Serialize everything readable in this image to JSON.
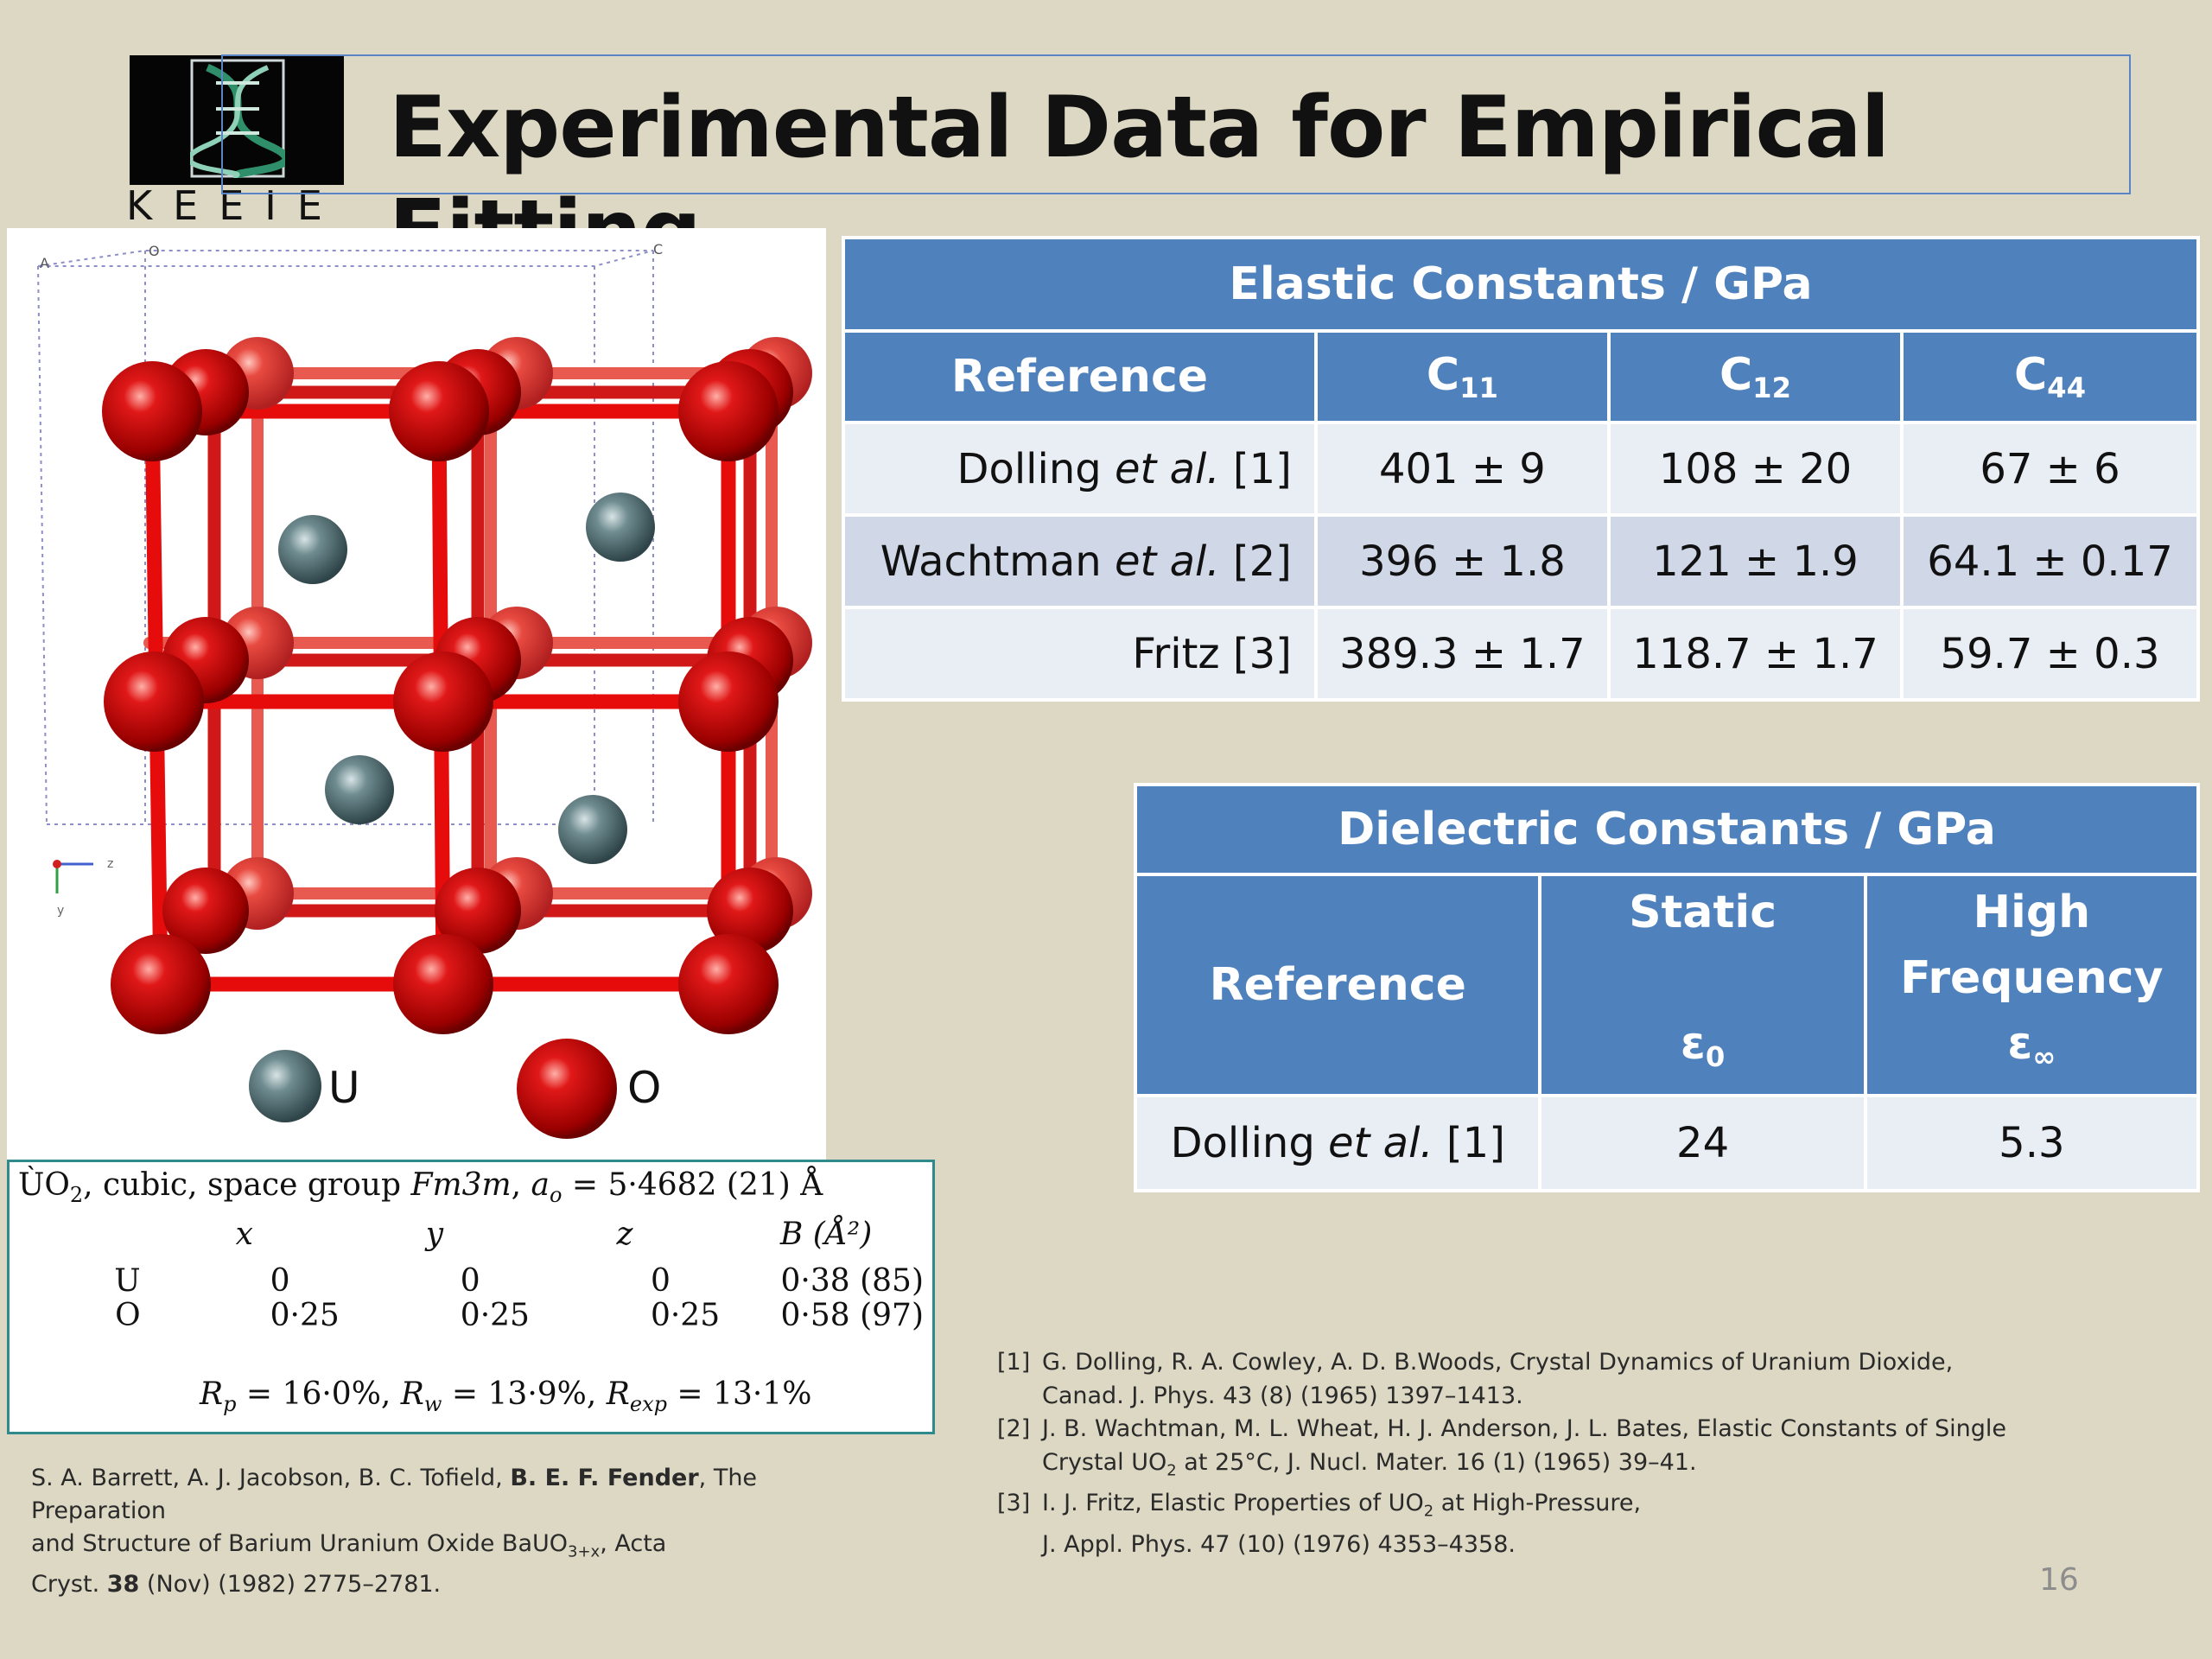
{
  "slide": {
    "title": "Experimental Data for Empirical Fitting",
    "logo_text": "KEEIE",
    "page_number": "16"
  },
  "colors": {
    "background": "#dcd8c3",
    "table_header": "#4f81bd",
    "row_light": "#e9edf4",
    "row_dark": "#d0d8e8",
    "oxygen": "#d01010",
    "uranium": "#4e6e72"
  },
  "crystal": {
    "legend_u": "U",
    "legend_o": "O",
    "axis_labels": {
      "a": "A",
      "o": "O",
      "c": "C",
      "z": "z",
      "y": "y"
    }
  },
  "atom_data": {
    "caption_pre": "ÙO",
    "caption_sub": "2",
    "caption_mid": ", cubic, space group ",
    "space_group": "Fm3m",
    "caption_comma": ", ",
    "a_sym": "a",
    "a_sub": "o",
    "caption_val": " = 5·4682 (21) Å",
    "headers": [
      "x",
      "y",
      "z",
      "B (Å²)"
    ],
    "rows": [
      {
        "atom": "U",
        "x": "0",
        "y": "0",
        "z": "0",
        "b": "0·38 (85)"
      },
      {
        "atom": "O",
        "x": "0·25",
        "y": "0·25",
        "z": "0·25",
        "b": "0·58 (97)"
      }
    ],
    "stats": {
      "rp_sym": "R",
      "rp_sub": "p",
      "rp_val": " = 16·0%, ",
      "rw_sym": "R",
      "rw_sub": "w",
      "rw_val": " = 13·9%,  ",
      "rexp_sym": "R",
      "rexp_sub": "exp",
      "rexp_val": " = 13·1%"
    }
  },
  "elastic_table": {
    "title": "Elastic Constants / GPa",
    "headers": {
      "reference": "Reference",
      "c11_base": "C",
      "c11_sub": "11",
      "c12_base": "C",
      "c12_sub": "12",
      "c44_base": "C",
      "c44_sub": "44"
    },
    "rows": [
      {
        "author": "Dolling ",
        "etal": "et al.",
        "ref": " [1]",
        "c11": "401 ± 9",
        "c12": "108 ± 20",
        "c44": "67 ± 6"
      },
      {
        "author": "Wachtman ",
        "etal": "et al.",
        "ref": " [2]",
        "c11": "396 ± 1.8",
        "c12": "121 ± 1.9",
        "c44": "64.1 ± 0.17"
      },
      {
        "author": "Fritz",
        "etal": "",
        "ref": " [3]",
        "c11": "389.3 ± 1.7",
        "c12": "118.7 ± 1.7",
        "c44": "59.7 ± 0.3"
      }
    ]
  },
  "dielectric_table": {
    "title": "Dielectric Constants / GPa",
    "headers": {
      "reference": "Reference",
      "static": "Static",
      "static_sym": "ε",
      "static_sub": "0",
      "high1": "High",
      "high2": "Frequency",
      "high_sym": "ε",
      "high_sub": "∞"
    },
    "rows": [
      {
        "author": "Dolling ",
        "etal": "et al.",
        "ref": " [1]",
        "static": "24",
        "high": "5.3"
      }
    ]
  },
  "barrett_ref": {
    "authors": "S. A. Barrett, A. J. Jacobson, B. C. Tofield, ",
    "bold_author": "B. E. F. Fender",
    "t1": ", The Preparation",
    "t2": "and Structure of Barium Uranium Oxide BaUO",
    "sub": "3+x",
    "t3": ", Acta",
    "t4": "Cryst. ",
    "vol": "38",
    "t5": " (Nov) (1982) 2775–2781."
  },
  "references": [
    {
      "num": "[1]",
      "line1": "G. Dolling, R. A. Cowley, A. D. B.Woods, Crystal Dynamics of Uranium Dioxide,",
      "line2a": "Canad. J. Phys. 43 (8) (1965) 1397–1413.",
      "sub": "",
      "line2b": ""
    },
    {
      "num": "[2]",
      "line1": "J. B. Wachtman, M. L. Wheat, H. J. Anderson, J. L. Bates, Elastic Constants of Single",
      "line2a": "Crystal UO",
      "sub": "2",
      "line2b": " at 25°C, J. Nucl. Mater. 16 (1) (1965) 39–41."
    },
    {
      "num": "[3]",
      "line1a": "I. J. Fritz, Elastic Properties of UO",
      "line1sub": "2",
      "line1b": " at High-Pressure,",
      "line2a": "J. Appl. Phys. 47 (10) (1976) 4353–4358.",
      "sub": "",
      "line2b": ""
    }
  ]
}
